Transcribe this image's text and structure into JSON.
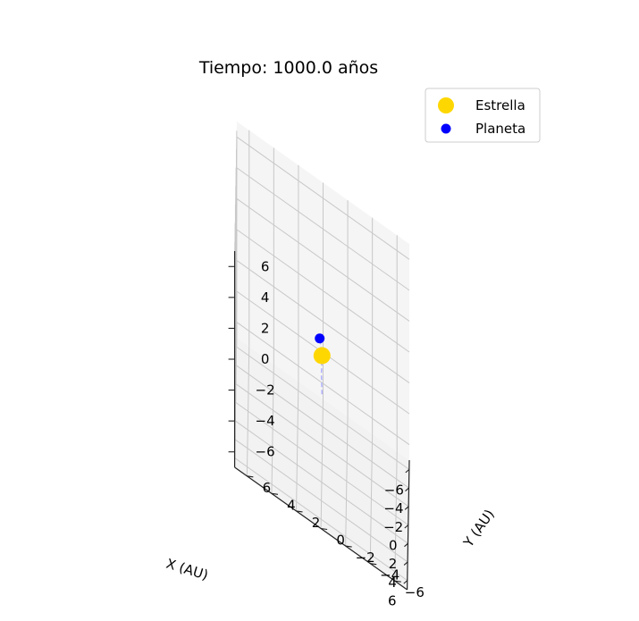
{
  "chart_data": {
    "type": "scatter",
    "projection": "3d",
    "title": "Tiempo: 1000.0 años",
    "xlabel": "X (AU)",
    "ylabel": "Y (AU)",
    "zlabel": "",
    "xlim": [
      -7,
      7
    ],
    "ylim": [
      -7,
      7
    ],
    "zlim": [
      -7,
      7
    ],
    "x_ticks": [
      -6,
      -4,
      -2,
      0,
      2,
      4,
      6
    ],
    "y_ticks": [
      -6,
      -4,
      -2,
      0,
      2,
      4,
      6
    ],
    "z_ticks": [
      -6,
      -4,
      -2,
      0,
      2,
      4,
      6
    ],
    "x_tick_labels": [
      "−6",
      "−4",
      "−2",
      "0",
      "2",
      "4",
      "6"
    ],
    "y_tick_labels": [
      "−6",
      "−4",
      "−2",
      "0",
      "2",
      "4",
      "6"
    ],
    "z_tick_labels": [
      "−6",
      "−4",
      "−2",
      "0",
      "2",
      "4",
      "6"
    ],
    "grid": true,
    "legend_position": "top-right",
    "series": [
      {
        "name": "Estrella",
        "color": "#FFD700",
        "points": [
          {
            "x": 0.0,
            "y": 0.0,
            "z": 0.0
          }
        ]
      },
      {
        "name": "Planeta",
        "color": "#0000FF",
        "points": [
          {
            "x": -1.0,
            "y": 0.2,
            "z": 0.4
          }
        ]
      }
    ],
    "trail": {
      "color": "#B0B0FF",
      "style": "dashed",
      "points": [
        {
          "x": 0.0,
          "y": 0.0,
          "z": -2.5
        },
        {
          "x": 0.05,
          "y": 0.05,
          "z": -1.2
        },
        {
          "x": 0.0,
          "y": 0.0,
          "z": -0.2
        },
        {
          "x": -0.5,
          "y": 0.1,
          "z": 0.3
        },
        {
          "x": -1.0,
          "y": 0.2,
          "z": 0.4
        }
      ]
    }
  }
}
